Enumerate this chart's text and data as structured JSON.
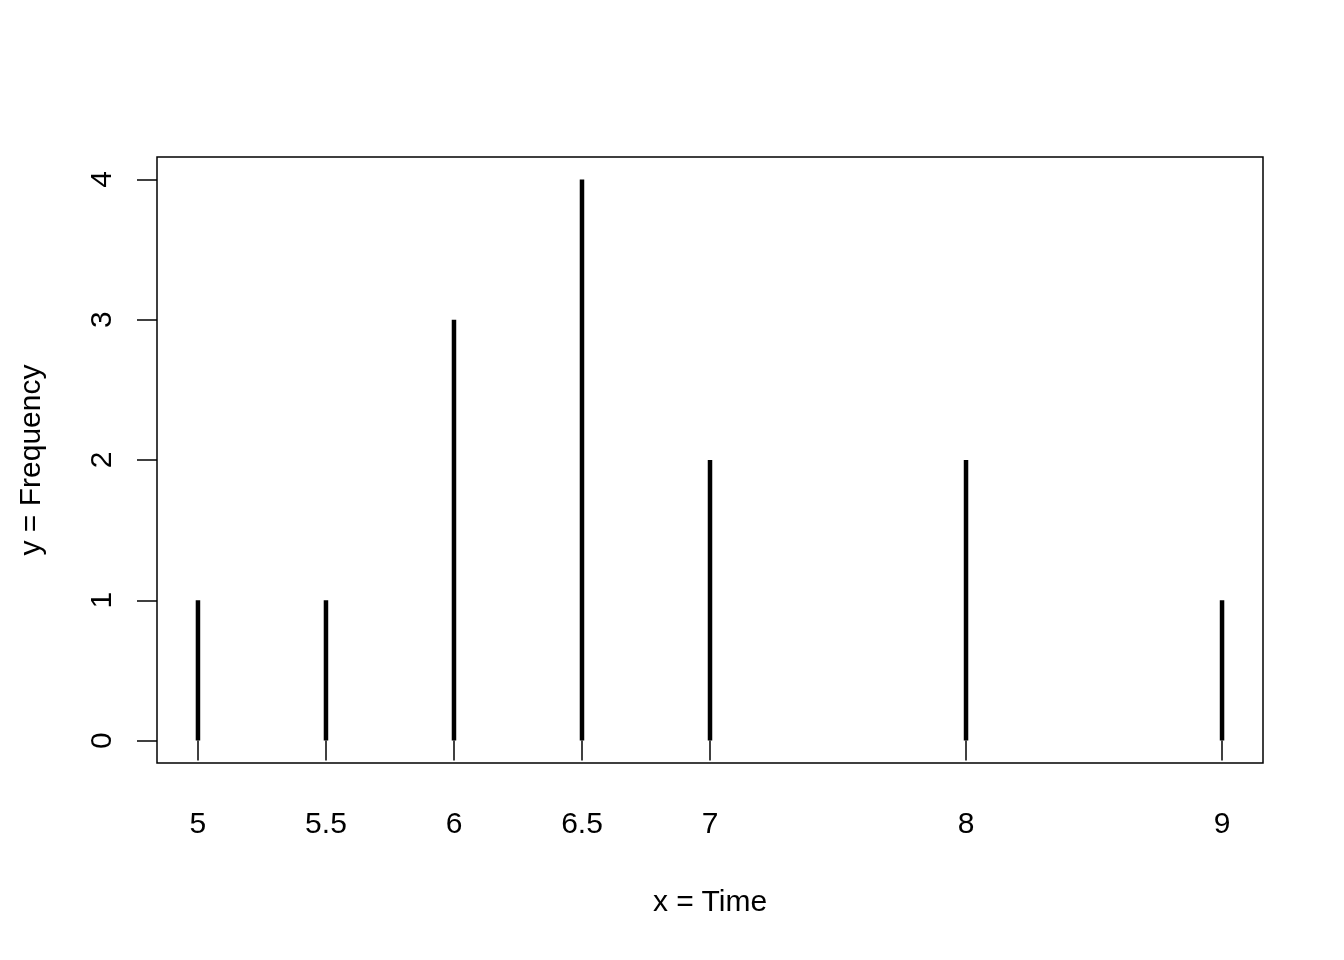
{
  "chart_data": {
    "type": "bar",
    "xlabel": "x = Time",
    "ylabel": "y = Frequency",
    "x": [
      5,
      5.5,
      6,
      6.5,
      7,
      8,
      9
    ],
    "values": [
      1,
      1,
      3,
      4,
      2,
      2,
      1
    ],
    "color": "#000000",
    "xlim": [
      4.84,
      9.16
    ],
    "ylim": [
      -0.16,
      4.16
    ],
    "xticks": [
      5,
      5.5,
      6,
      6.5,
      7,
      8,
      9
    ],
    "yticks": [
      0,
      1,
      2,
      3,
      4
    ]
  }
}
